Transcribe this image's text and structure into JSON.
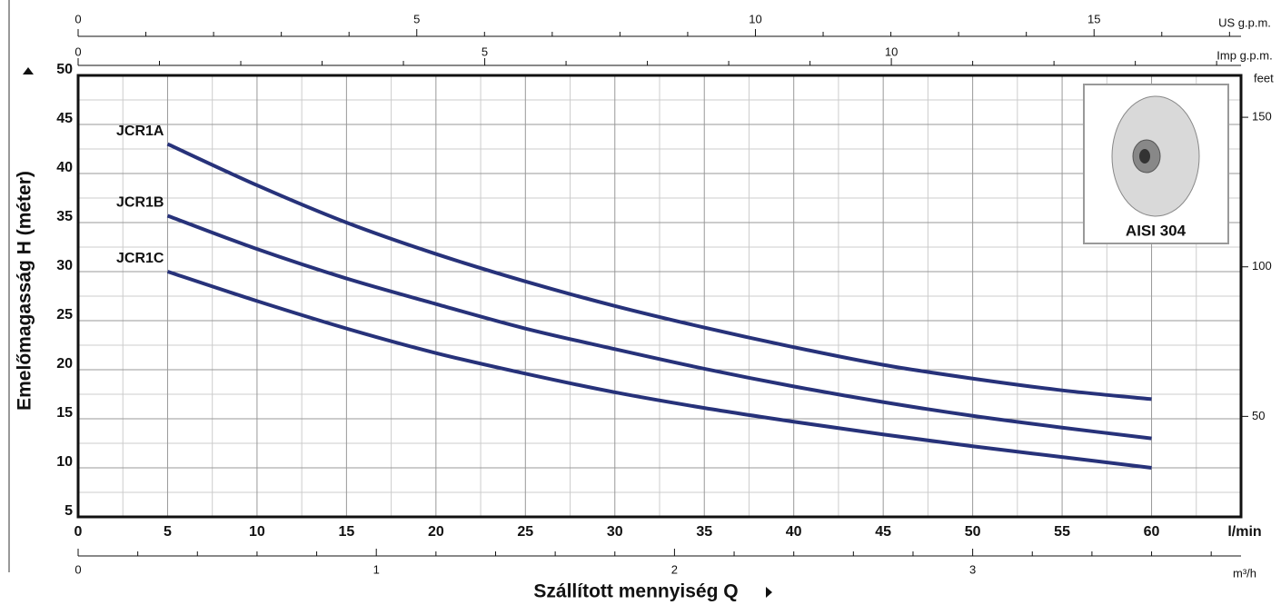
{
  "chart_data": {
    "type": "line",
    "x_label": "Szállított mennyiség Q",
    "y_label": "Emelőmagasság H  (méter)",
    "x_unit": "l/min",
    "y2_unit": "feet",
    "x_us_unit": "US g.p.m.",
    "x_imp_unit": "Imp g.p.m.",
    "x_m3_unit": "m³/h",
    "inset_label": "AISI 304",
    "x": [
      5,
      10,
      15,
      20,
      25,
      30,
      35,
      40,
      45,
      50,
      55,
      60
    ],
    "series": [
      {
        "name": "JCR1A",
        "color": "#27327a",
        "values": [
          43,
          38.8,
          35,
          31.8,
          29,
          26.5,
          24.3,
          22.3,
          20.5,
          19.1,
          17.9,
          17
        ]
      },
      {
        "name": "JCR1B",
        "color": "#27327a",
        "values": [
          35.7,
          32.3,
          29.3,
          26.7,
          24.2,
          22.1,
          20.1,
          18.3,
          16.7,
          15.3,
          14.1,
          13
        ]
      },
      {
        "name": "JCR1C",
        "color": "#27327a",
        "values": [
          30,
          27,
          24.2,
          21.7,
          19.6,
          17.7,
          16.1,
          14.7,
          13.4,
          12.2,
          11.1,
          10
        ]
      }
    ],
    "xlim": [
      0,
      65
    ],
    "xticks": [
      0,
      5,
      10,
      15,
      20,
      25,
      30,
      35,
      40,
      45,
      50,
      55,
      60
    ],
    "xminor": [
      2.5,
      7.5,
      12.5,
      17.5,
      22.5,
      27.5,
      32.5,
      37.5,
      42.5,
      47.5,
      52.5,
      57.5,
      62.5
    ],
    "ylim": [
      5,
      50
    ],
    "yticks": [
      5,
      10,
      15,
      20,
      25,
      30,
      35,
      40,
      45,
      50
    ],
    "yminor": [
      7.5,
      12.5,
      17.5,
      22.5,
      27.5,
      32.5,
      37.5,
      42.5,
      47.5
    ],
    "y2lim": [
      16.4,
      164
    ],
    "y2ticks": [
      50,
      100,
      150
    ],
    "x_us_lim": [
      0,
      17.17
    ],
    "x_us_ticks": [
      0,
      5,
      10,
      15
    ],
    "x_us_minor": [
      1,
      2,
      3,
      4,
      6,
      7,
      8,
      9,
      11,
      12,
      13,
      14,
      16,
      17
    ],
    "x_imp_lim": [
      0,
      14.3
    ],
    "x_imp_ticks": [
      0,
      5,
      10
    ],
    "x_imp_minor": [
      1,
      2,
      3,
      4,
      6,
      7,
      8,
      9,
      11,
      12,
      13,
      14
    ],
    "x_m3_lim": [
      0,
      3.9
    ],
    "x_m3_ticks": [
      0,
      1,
      2,
      3
    ],
    "x_m3_minor": [
      0.2,
      0.4,
      0.6,
      0.8,
      1.2,
      1.4,
      1.6,
      1.8,
      2.2,
      2.4,
      2.6,
      2.8,
      3.2,
      3.4,
      3.6,
      3.8
    ],
    "grid": true
  }
}
